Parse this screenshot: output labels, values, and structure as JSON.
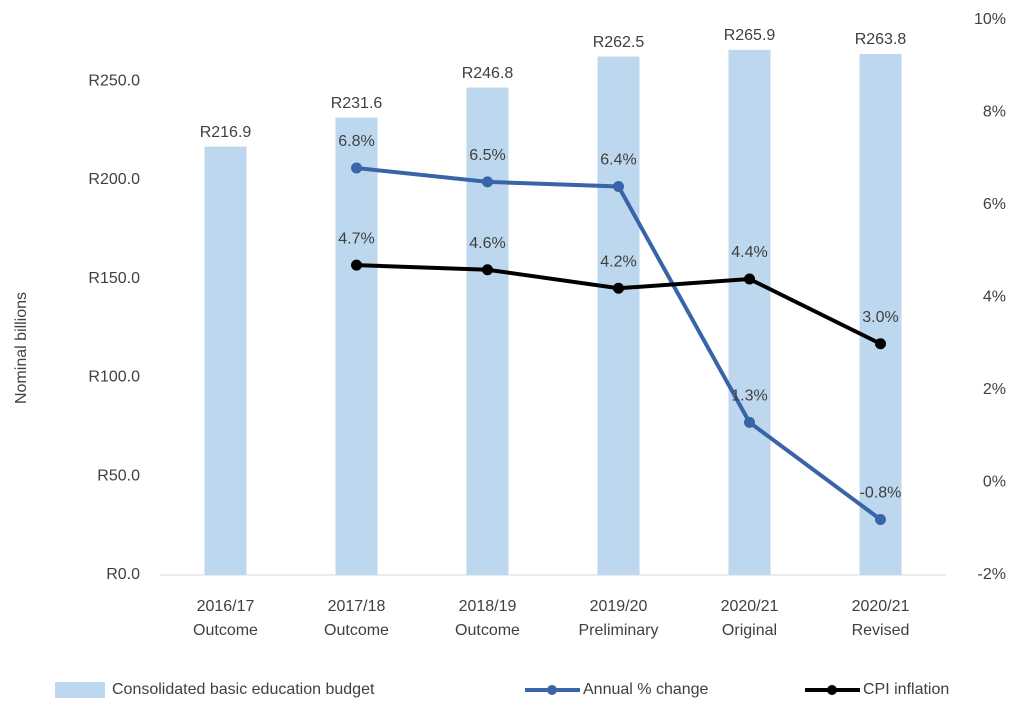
{
  "chart_data": {
    "type": "combo",
    "y_label": "Nominal billions",
    "categories": [
      [
        "2016/17",
        "Outcome"
      ],
      [
        "2017/18",
        "Outcome"
      ],
      [
        "2018/19",
        "Outcome"
      ],
      [
        "2019/20",
        "Preliminary"
      ],
      [
        "2020/21",
        "Original"
      ],
      [
        "2020/21",
        "Revised"
      ]
    ],
    "ylim": [
      0,
      281
    ],
    "yticks": [
      {
        "value": 0,
        "label": "R0.0"
      },
      {
        "value": 50,
        "label": "R50.0"
      },
      {
        "value": 100,
        "label": "R100.0"
      },
      {
        "value": 150,
        "label": "R150.0"
      },
      {
        "value": 200,
        "label": "R200.0"
      },
      {
        "value": 250,
        "label": "R250.0"
      }
    ],
    "y2lim": [
      -2,
      10
    ],
    "y2ticks": [
      {
        "value": -2,
        "label": "-2%"
      },
      {
        "value": 0,
        "label": "0%"
      },
      {
        "value": 2,
        "label": "2%"
      },
      {
        "value": 4,
        "label": "4%"
      },
      {
        "value": 6,
        "label": "6%"
      },
      {
        "value": 8,
        "label": "8%"
      },
      {
        "value": 10,
        "label": "10%"
      }
    ],
    "grid": false,
    "legend": "bottom",
    "series": [
      {
        "name": "Consolidated basic education budget",
        "type": "bar",
        "color": "#bdd7ee",
        "values": [
          216.9,
          231.6,
          246.8,
          262.5,
          265.9,
          263.8
        ],
        "value_labels": [
          "R216.9",
          "R231.6",
          "R246.8",
          "R262.5",
          "R265.9",
          "R263.8"
        ]
      },
      {
        "name": "Annual % change",
        "type": "line",
        "axis": "y2",
        "color": "#3a64a8",
        "values": [
          null,
          6.8,
          6.5,
          6.4,
          1.3,
          -0.8
        ],
        "value_labels": [
          null,
          "6.8%",
          "6.5%",
          "6.4%",
          "1.3%",
          "-0.8%"
        ]
      },
      {
        "name": "CPI inflation",
        "type": "line",
        "axis": "y2",
        "color": "#000000",
        "values": [
          null,
          4.7,
          4.6,
          4.2,
          4.4,
          3.0
        ],
        "value_labels": [
          null,
          "4.7%",
          "4.6%",
          "4.2%",
          "4.4%",
          "3.0%"
        ]
      }
    ]
  }
}
